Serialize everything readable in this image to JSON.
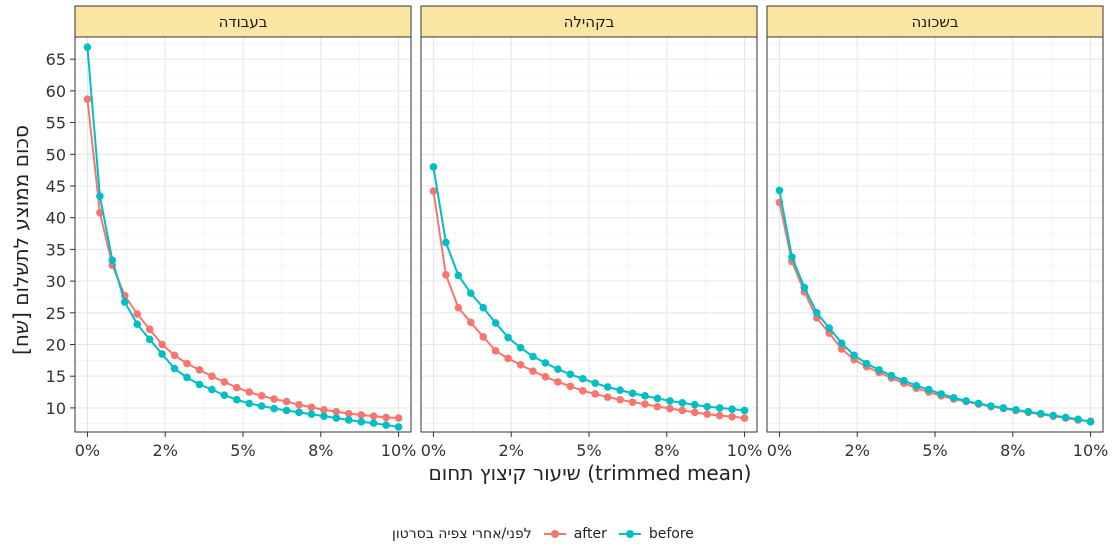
{
  "chart_data": {
    "type": "line",
    "ylabel": "סכום ממוצע לתשלום [שח]",
    "xlabel": "שיעור קיצוץ תחום (trimmed mean)",
    "legend": {
      "title": "לפני/אחרי צפיה בסרטון",
      "position": "bottom"
    },
    "x_ticks": [
      "0%",
      "2%",
      "5%",
      "8%",
      "10%"
    ],
    "y_ticks": [
      "10",
      "15",
      "20",
      "25",
      "30",
      "35",
      "40",
      "45",
      "50",
      "55",
      "60",
      "65"
    ],
    "xlim": [
      -0.004,
      0.104
    ],
    "ylim": [
      6.2,
      68.5
    ],
    "x": [
      0,
      0.004,
      0.008,
      0.012,
      0.016,
      0.02,
      0.024,
      0.028,
      0.032,
      0.036,
      0.04,
      0.044,
      0.048,
      0.052,
      0.056,
      0.06,
      0.064,
      0.068,
      0.072,
      0.076,
      0.08,
      0.084,
      0.088,
      0.092,
      0.096,
      0.1
    ],
    "grid": true,
    "colors": {
      "after": "#F8766D",
      "before": "#00BFC4",
      "strip": "#FAE5A3",
      "panel_border": "#333333",
      "grid": "#e7e7e7"
    },
    "panels": [
      {
        "title": "בעבודה",
        "series": [
          {
            "name": "after",
            "values": [
              58.7,
              40.8,
              32.5,
              27.7,
              24.8,
              22.4,
              20.0,
              18.3,
              17.0,
              16.0,
              15.0,
              14.1,
              13.2,
              12.5,
              11.9,
              11.4,
              11.0,
              10.5,
              10.1,
              9.7,
              9.4,
              9.1,
              8.9,
              8.7,
              8.5,
              8.4
            ]
          },
          {
            "name": "before",
            "values": [
              66.9,
              43.4,
              33.3,
              26.7,
              23.2,
              20.8,
              18.5,
              16.2,
              14.8,
              13.7,
              12.9,
              12.0,
              11.3,
              10.7,
              10.3,
              9.9,
              9.6,
              9.3,
              9.0,
              8.7,
              8.4,
              8.1,
              7.8,
              7.6,
              7.3,
              7.0
            ]
          }
        ]
      },
      {
        "title": "בקהילה",
        "series": [
          {
            "name": "after",
            "values": [
              44.2,
              31.0,
              25.8,
              23.5,
              21.2,
              19.0,
              17.8,
              16.8,
              15.8,
              14.9,
              14.1,
              13.4,
              12.7,
              12.2,
              11.7,
              11.3,
              10.9,
              10.6,
              10.2,
              9.9,
              9.6,
              9.3,
              9.0,
              8.8,
              8.6,
              8.4
            ]
          },
          {
            "name": "before",
            "values": [
              48.0,
              36.1,
              30.9,
              28.1,
              25.8,
              23.4,
              21.1,
              19.5,
              18.1,
              17.1,
              16.1,
              15.3,
              14.6,
              13.9,
              13.3,
              12.8,
              12.3,
              11.9,
              11.5,
              11.1,
              10.8,
              10.5,
              10.2,
              10.0,
              9.8,
              9.6
            ]
          }
        ]
      },
      {
        "title": "בשכונה",
        "series": [
          {
            "name": "after",
            "values": [
              42.4,
              33.1,
              28.3,
              24.2,
              21.8,
              19.3,
              17.6,
              16.5,
              15.6,
              14.7,
              13.9,
              13.1,
              12.5,
              11.9,
              11.4,
              11.0,
              10.6,
              10.2,
              9.9,
              9.6,
              9.3,
              9.0,
              8.7,
              8.4,
              8.1,
              7.9
            ]
          },
          {
            "name": "before",
            "values": [
              44.3,
              33.8,
              29.0,
              25.0,
              22.6,
              20.2,
              18.3,
              17.0,
              16.0,
              15.1,
              14.3,
              13.5,
              12.9,
              12.2,
              11.6,
              11.1,
              10.7,
              10.3,
              10.0,
              9.7,
              9.4,
              9.1,
              8.8,
              8.5,
              8.2,
              7.8
            ]
          }
        ]
      }
    ]
  }
}
